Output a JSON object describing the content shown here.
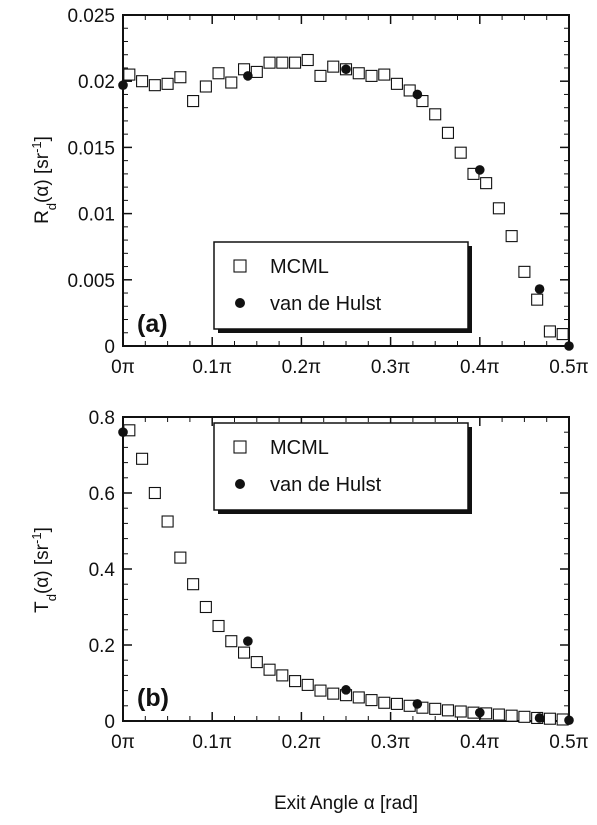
{
  "chart_data": [
    {
      "type": "scatter",
      "panel_label": "(a)",
      "ylabel": "R_d(α) [sr⁻¹]",
      "ylabel_main": "R",
      "ylabel_sub": "d",
      "ylabel_rest": "(α) [sr",
      "ylabel_sup": "-1",
      "ylabel_end": "]",
      "xlabel": "",
      "xlim": [
        0,
        0.5
      ],
      "ylim": [
        0,
        0.025
      ],
      "xticks": [
        "0π",
        "0.1π",
        "0.2π",
        "0.3π",
        "0.4π",
        "0.5π"
      ],
      "yticks": [
        "0",
        "0.005",
        "0.01",
        "0.015",
        "0.02",
        "0.025"
      ],
      "legend_placement": "lower-center",
      "series": [
        {
          "name": "MCML",
          "marker": "open-square",
          "x": [
            0.0071,
            0.0214,
            0.0357,
            0.05,
            0.0643,
            0.0786,
            0.0929,
            0.1071,
            0.1214,
            0.1357,
            0.15,
            0.1643,
            0.1786,
            0.1929,
            0.2071,
            0.2214,
            0.2357,
            0.25,
            0.2643,
            0.2786,
            0.2929,
            0.3071,
            0.3214,
            0.3357,
            0.35,
            0.3643,
            0.3786,
            0.3929,
            0.4071,
            0.4214,
            0.4357,
            0.45,
            0.4643,
            0.4786,
            0.4929
          ],
          "y": [
            0.0205,
            0.02,
            0.0197,
            0.0198,
            0.0203,
            0.0185,
            0.0196,
            0.0206,
            0.0199,
            0.0209,
            0.0207,
            0.0214,
            0.0214,
            0.0214,
            0.0216,
            0.0204,
            0.0211,
            0.0209,
            0.0206,
            0.0204,
            0.0205,
            0.0198,
            0.0193,
            0.0185,
            0.0175,
            0.0161,
            0.0146,
            0.013,
            0.0123,
            0.0104,
            0.0083,
            0.0056,
            0.0035,
            0.0011,
            0.0009
          ]
        },
        {
          "name": "van de Hulst",
          "marker": "filled-circle",
          "x": [
            0.0,
            0.14,
            0.25,
            0.33,
            0.4,
            0.467,
            0.5
          ],
          "y": [
            0.0197,
            0.0204,
            0.0209,
            0.019,
            0.0133,
            0.0043,
            0.0
          ]
        }
      ]
    },
    {
      "type": "scatter",
      "panel_label": "(b)",
      "ylabel": "T_d(α) [sr⁻¹]",
      "ylabel_main": "T",
      "ylabel_sub": "d",
      "ylabel_rest": "(α) [sr",
      "ylabel_sup": "-1",
      "ylabel_end": "]",
      "xlabel": "Exit Angle α [rad]",
      "xlim": [
        0,
        0.5
      ],
      "ylim": [
        0,
        0.8
      ],
      "xticks": [
        "0π",
        "0.1π",
        "0.2π",
        "0.3π",
        "0.4π",
        "0.5π"
      ],
      "yticks": [
        "0",
        "0.2",
        "0.4",
        "0.6",
        "0.8"
      ],
      "legend_placement": "top-center",
      "series": [
        {
          "name": "MCML",
          "marker": "open-square",
          "x": [
            0.0071,
            0.0214,
            0.0357,
            0.05,
            0.0643,
            0.0786,
            0.0929,
            0.1071,
            0.1214,
            0.1357,
            0.15,
            0.1643,
            0.1786,
            0.1929,
            0.2071,
            0.2214,
            0.2357,
            0.25,
            0.2643,
            0.2786,
            0.2929,
            0.3071,
            0.3214,
            0.3357,
            0.35,
            0.3643,
            0.3786,
            0.3929,
            0.4071,
            0.4214,
            0.4357,
            0.45,
            0.4643,
            0.4786,
            0.4929
          ],
          "y": [
            0.765,
            0.69,
            0.6,
            0.525,
            0.43,
            0.36,
            0.3,
            0.25,
            0.21,
            0.18,
            0.155,
            0.135,
            0.12,
            0.105,
            0.095,
            0.08,
            0.072,
            0.068,
            0.062,
            0.055,
            0.048,
            0.045,
            0.04,
            0.035,
            0.032,
            0.028,
            0.025,
            0.022,
            0.02,
            0.017,
            0.014,
            0.011,
            0.008,
            0.006,
            0.004
          ]
        },
        {
          "name": "van de Hulst",
          "marker": "filled-circle",
          "x": [
            0.0,
            0.14,
            0.25,
            0.33,
            0.4,
            0.467,
            0.5
          ],
          "y": [
            0.76,
            0.21,
            0.082,
            0.045,
            0.022,
            0.008,
            0.002
          ]
        }
      ]
    }
  ]
}
